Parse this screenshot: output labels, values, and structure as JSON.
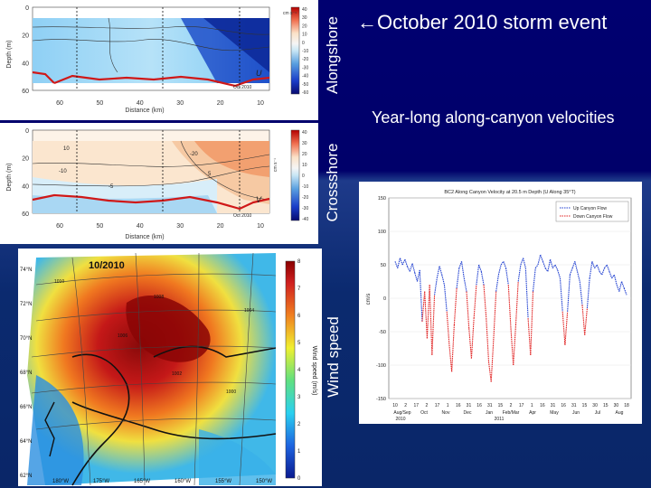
{
  "slide": {
    "title": "October 2010 storm event",
    "title_arrow": "←",
    "subtitle": "Year-long along-canyon velocities",
    "side_labels": {
      "alongshore": "Alongshore",
      "crossshore": "Crossshore",
      "windspeed": "Wind speed"
    }
  },
  "colors": {
    "slide_background": "#000060",
    "up_flow": "#1f3fd0",
    "down_flow": "#e02020",
    "bathymetry": "#d01818"
  },
  "chart_data": [
    {
      "type": "heatmap",
      "name": "alongshore-section",
      "xlabel": "Distance (km)",
      "ylabel": "Depth (m)",
      "x_ticks": [
        60,
        50,
        40,
        30,
        20,
        10
      ],
      "y_ticks": [
        0,
        20,
        40,
        60
      ],
      "annotation_var": "U",
      "annotation_date": "Oct 2010",
      "colorbar_unit": "cm s⁻¹",
      "colorbar_ticks": [
        40,
        30,
        20,
        10,
        0,
        -10,
        -20,
        -30,
        -40,
        -50,
        -60
      ]
    },
    {
      "type": "heatmap",
      "name": "crossshore-section",
      "xlabel": "Distance (km)",
      "ylabel": "Depth (m)",
      "x_ticks": [
        60,
        50,
        40,
        30,
        20,
        10
      ],
      "y_ticks": [
        0,
        20,
        40,
        60
      ],
      "annotation_var": "V",
      "annotation_date": "Oct 2010",
      "colorbar_unit": "cm s⁻¹",
      "colorbar_ticks": [
        40,
        30,
        20,
        10,
        0,
        -10,
        -20,
        -30,
        -40
      ],
      "contour_labels": [
        "10",
        "-10",
        "-20",
        "5",
        "-5"
      ]
    },
    {
      "type": "heatmap",
      "name": "wind-speed-map",
      "title": "10/2010",
      "colorbar_label": "Wind speed (m/s)",
      "colorbar_ticks": [
        0,
        1,
        2,
        3,
        4,
        5,
        6,
        7,
        8
      ],
      "lat_labels": [
        "74°N",
        "72°N",
        "70°N",
        "68°N",
        "66°N",
        "64°N",
        "62°N"
      ],
      "lon_labels": [
        "180°W",
        "175°W",
        "165°W",
        "160°W",
        "155°W",
        "150°W"
      ],
      "isobar_labels": [
        "1010",
        "1008",
        "1006",
        "1004",
        "1002",
        "1000"
      ]
    },
    {
      "type": "line",
      "name": "along-canyon-velocity",
      "title": "BC2 Along Canyon Velocity at 20.5 m Depth (U Along 35°T)",
      "ylabel": "cm/s",
      "ylim": [
        -150,
        150
      ],
      "y_ticks": [
        150,
        100,
        50,
        0,
        -50,
        -100,
        -150
      ],
      "x_ticks": [
        "10",
        "2",
        "17",
        "2",
        "17",
        "1",
        "16",
        "31",
        "16",
        "31",
        "15",
        "2",
        "17",
        "1",
        "16",
        "31",
        "16",
        "31",
        "15",
        "30",
        "15",
        "30",
        "18"
      ],
      "month_labels": [
        "Aug/Sep",
        "Oct",
        "Nov",
        "Dec",
        "Jan",
        "Feb/Mar",
        "Apr",
        "May",
        "Jun",
        "Jul",
        "Aug"
      ],
      "year_labels": [
        "2010",
        "2011"
      ],
      "legend": [
        "Up Canyon Flow",
        "Down Canyon Flow"
      ],
      "values": [
        55,
        45,
        60,
        50,
        58,
        47,
        40,
        52,
        38,
        25,
        42,
        -35,
        10,
        -60,
        20,
        -85,
        5,
        30,
        48,
        35,
        20,
        -20,
        -70,
        -110,
        -40,
        15,
        45,
        55,
        30,
        10,
        -45,
        -90,
        -30,
        20,
        50,
        40,
        20,
        -30,
        -95,
        -125,
        -60,
        10,
        35,
        50,
        55,
        45,
        20,
        -45,
        -100,
        -40,
        25,
        50,
        60,
        45,
        -30,
        -85,
        10,
        45,
        50,
        65,
        55,
        45,
        40,
        58,
        45,
        50,
        42,
        30,
        -20,
        -70,
        -20,
        35,
        45,
        55,
        40,
        25,
        -10,
        -55,
        -15,
        30,
        55,
        45,
        50,
        40,
        35,
        45,
        50,
        40,
        30,
        35,
        20,
        10,
        25,
        15,
        5
      ]
    }
  ]
}
